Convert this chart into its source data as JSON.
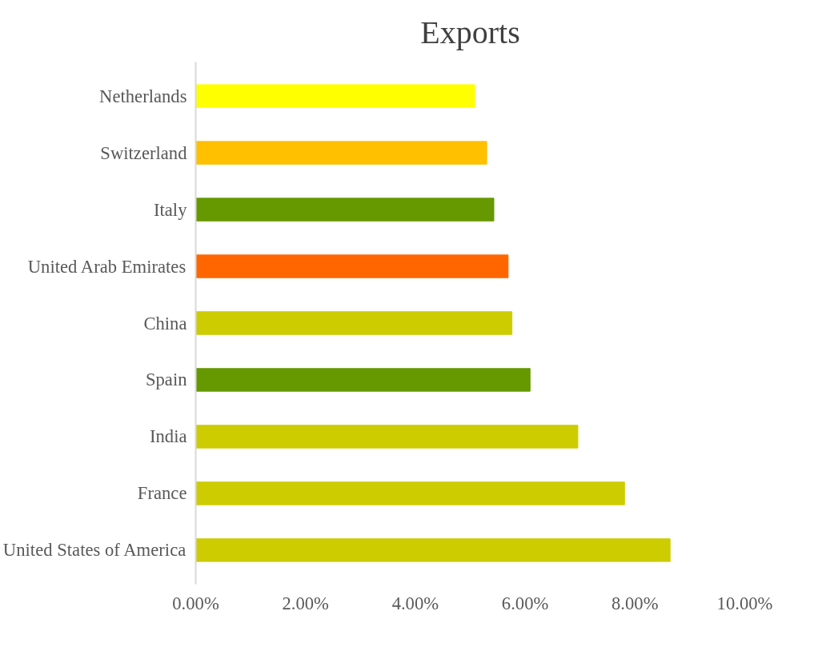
{
  "chart_data": {
    "type": "bar",
    "orientation": "horizontal",
    "title": "Exports",
    "categories": [
      "Netherlands",
      "Switzerland",
      "Italy",
      "United Arab Emirates",
      "China",
      "Spain",
      "India",
      "France",
      "United States of America"
    ],
    "values": [
      5.08,
      5.3,
      5.43,
      5.69,
      5.76,
      6.09,
      6.96,
      7.81,
      8.64
    ],
    "colors": [
      "#ffff00",
      "#ffc000",
      "#669900",
      "#ff6600",
      "#cccc00",
      "#669900",
      "#cccc00",
      "#cccc00",
      "#cccc00"
    ],
    "xlim": [
      0,
      10
    ],
    "xticks": [
      {
        "value": 0,
        "label": "0.00%"
      },
      {
        "value": 2,
        "label": "2.00%"
      },
      {
        "value": 4,
        "label": "4.00%"
      },
      {
        "value": 6,
        "label": "6.00%"
      },
      {
        "value": 8,
        "label": "8.00%"
      },
      {
        "value": 10,
        "label": "10.00%"
      }
    ],
    "grid": false
  }
}
